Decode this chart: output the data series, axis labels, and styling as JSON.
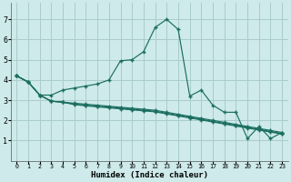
{
  "xlabel": "Humidex (Indice chaleur)",
  "background_color": "#ceeaea",
  "grid_color": "#aacccc",
  "line_color": "#1a6e60",
  "xlim": [
    -0.5,
    23.5
  ],
  "ylim": [
    0,
    7.8
  ],
  "xticks": [
    0,
    1,
    2,
    3,
    4,
    5,
    6,
    7,
    8,
    9,
    10,
    11,
    12,
    13,
    14,
    15,
    16,
    17,
    18,
    19,
    20,
    21,
    22,
    23
  ],
  "yticks": [
    1,
    2,
    3,
    4,
    5,
    6,
    7
  ],
  "series": [
    [
      4.2,
      3.9,
      3.25,
      3.25,
      3.5,
      3.6,
      3.7,
      3.8,
      4.0,
      4.95,
      5.0,
      5.4,
      6.6,
      7.0,
      6.5,
      3.2,
      3.5,
      2.75,
      2.4,
      2.4,
      1.1,
      1.7,
      1.1,
      1.4
    ],
    [
      4.2,
      3.9,
      3.25,
      2.95,
      2.9,
      2.85,
      2.8,
      2.75,
      2.7,
      2.65,
      2.6,
      2.55,
      2.5,
      2.4,
      2.3,
      2.2,
      2.1,
      2.0,
      1.9,
      1.8,
      1.7,
      1.6,
      1.5,
      1.4
    ],
    [
      4.2,
      3.9,
      3.25,
      2.95,
      2.9,
      2.8,
      2.75,
      2.7,
      2.65,
      2.6,
      2.55,
      2.5,
      2.45,
      2.35,
      2.25,
      2.15,
      2.05,
      1.95,
      1.85,
      1.75,
      1.65,
      1.55,
      1.45,
      1.35
    ],
    [
      4.2,
      3.9,
      3.25,
      2.95,
      2.9,
      2.78,
      2.72,
      2.67,
      2.62,
      2.57,
      2.52,
      2.47,
      2.42,
      2.32,
      2.22,
      2.12,
      2.02,
      1.92,
      1.82,
      1.72,
      1.62,
      1.52,
      1.42,
      1.32
    ]
  ]
}
